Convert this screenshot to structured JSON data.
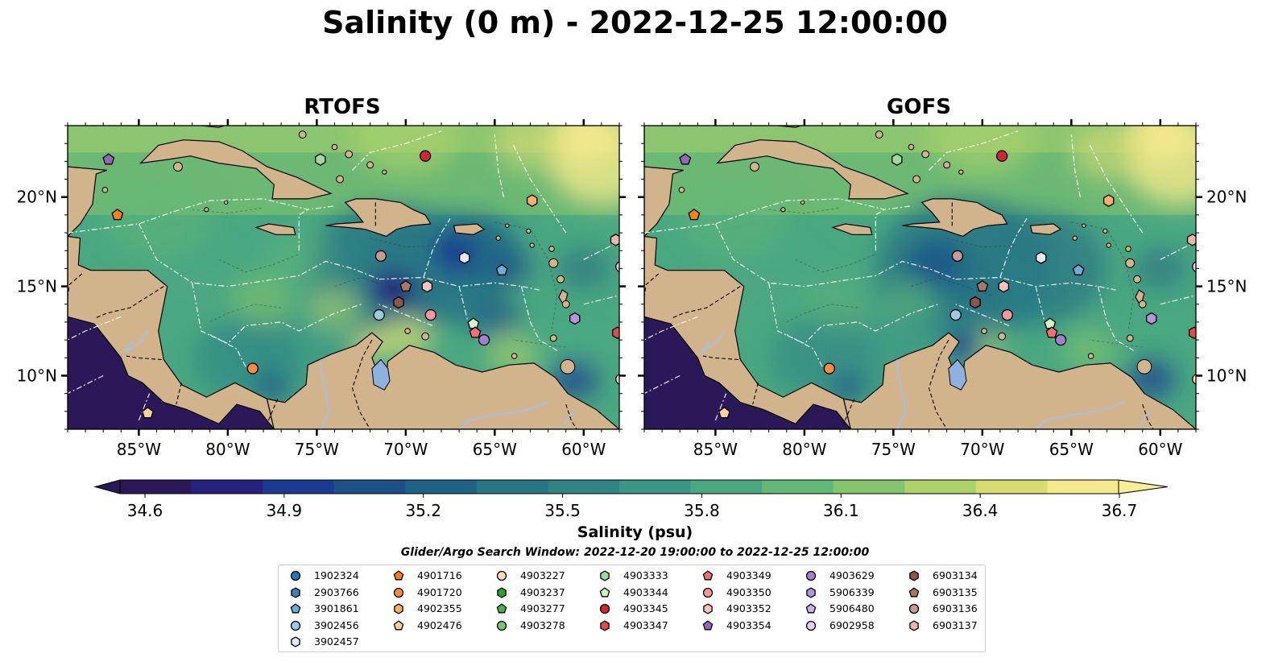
{
  "title": "Salinity (0 m) - 2022-12-25 12:00:00",
  "panels": [
    {
      "title": "RTOFS"
    },
    {
      "title": "GOFS"
    }
  ],
  "colorbar": {
    "label": "Salinity (psu)",
    "ticks": [
      "34.6",
      "34.9",
      "35.2",
      "35.5",
      "35.8",
      "36.1",
      "36.4",
      "36.7"
    ],
    "min": 34.6,
    "max": 36.7,
    "extend": "both",
    "colormap": [
      "#2a1858",
      "#26207e",
      "#1d3a92",
      "#1b5089",
      "#1e6286",
      "#277585",
      "#2f8585",
      "#3a9685",
      "#4aa881",
      "#62b877",
      "#84c56d",
      "#acd26a",
      "#d5dc74",
      "#f3e88b"
    ]
  },
  "search_window": "Glider/Argo Search Window: 2022-12-20 19:00:00 to 2022-12-25 12:00:00",
  "chart_data": {
    "type": "heatmap",
    "variable": "Salinity",
    "depth": "0 m",
    "units": "psu",
    "x_ticks": [
      "85°W",
      "80°W",
      "75°W",
      "70°W",
      "65°W",
      "60°W"
    ],
    "y_ticks": [
      "10°N",
      "15°N",
      "20°N"
    ],
    "xlim": [
      -89,
      -58
    ],
    "ylim": [
      7,
      24
    ],
    "colorbar_range": [
      34.6,
      36.7
    ],
    "land_color": "#d2b48c",
    "floats": [
      {
        "id": "1902324",
        "marker": "circle",
        "color": "#1f77b4",
        "positions": []
      },
      {
        "id": "2903766",
        "marker": "hexagon",
        "color": "#3d7fb6",
        "positions": []
      },
      {
        "id": "3901861",
        "marker": "pentagon",
        "color": "#6baed6",
        "positions": [
          [
            -64.6,
            15.9
          ]
        ]
      },
      {
        "id": "3902456",
        "marker": "circle",
        "color": "#9ecae1",
        "positions": [
          [
            -71.5,
            13.4
          ]
        ]
      },
      {
        "id": "3902457",
        "marker": "hexagon",
        "color": "#deebf7",
        "positions": [
          [
            -66.7,
            16.6
          ]
        ]
      },
      {
        "id": "4901716",
        "marker": "pentagon",
        "color": "#ff7f0e",
        "positions": [
          [
            -86.2,
            19.0
          ]
        ]
      },
      {
        "id": "4901720",
        "marker": "circle",
        "color": "#fd8d3c",
        "positions": [
          [
            -78.6,
            10.4
          ]
        ]
      },
      {
        "id": "4902355",
        "marker": "hexagon",
        "color": "#fdae6b",
        "positions": [
          [
            -62.9,
            19.8
          ]
        ]
      },
      {
        "id": "4902476",
        "marker": "pentagon",
        "color": "#fdd0a2",
        "positions": [
          [
            -84.5,
            7.9
          ]
        ]
      },
      {
        "id": "4903227",
        "marker": "circle",
        "color": "#fdd9bf",
        "positions": [
          [
            -57.9,
            9.8
          ]
        ]
      },
      {
        "id": "4903237",
        "marker": "hexagon",
        "color": "#2ca02c",
        "positions": []
      },
      {
        "id": "4903277",
        "marker": "pentagon",
        "color": "#4bb34b",
        "positions": []
      },
      {
        "id": "4903278",
        "marker": "circle",
        "color": "#74c476",
        "positions": []
      },
      {
        "id": "4903333",
        "marker": "hexagon",
        "color": "#a1d99b",
        "positions": [
          [
            -74.8,
            22.1
          ]
        ]
      },
      {
        "id": "4903344",
        "marker": "pentagon",
        "color": "#d1f2c8",
        "positions": [
          [
            -66.2,
            12.9
          ]
        ]
      },
      {
        "id": "4903345",
        "marker": "circle",
        "color": "#d62728",
        "positions": [
          [
            -68.9,
            22.3
          ]
        ]
      },
      {
        "id": "4903347",
        "marker": "hexagon",
        "color": "#e34a4a",
        "positions": [
          [
            -58.1,
            12.4
          ]
        ]
      },
      {
        "id": "4903349",
        "marker": "pentagon",
        "color": "#f07073",
        "positions": [
          [
            -66.1,
            12.4
          ]
        ]
      },
      {
        "id": "4903350",
        "marker": "circle",
        "color": "#f4999b",
        "positions": [
          [
            -68.6,
            13.4
          ]
        ]
      },
      {
        "id": "4903352",
        "marker": "hexagon",
        "color": "#f8c2c4",
        "positions": [
          [
            -68.8,
            15.0
          ]
        ]
      },
      {
        "id": "4903354",
        "marker": "pentagon",
        "color": "#9467bd",
        "positions": [
          [
            -86.7,
            22.1
          ]
        ]
      },
      {
        "id": "4903629",
        "marker": "circle",
        "color": "#a47fd0",
        "positions": [
          [
            -65.6,
            12.0
          ]
        ]
      },
      {
        "id": "5906339",
        "marker": "hexagon",
        "color": "#b296e0",
        "positions": [
          [
            -60.5,
            13.2
          ]
        ]
      },
      {
        "id": "5906480",
        "marker": "pentagon",
        "color": "#c9b2ee",
        "positions": []
      },
      {
        "id": "6902958",
        "marker": "circle",
        "color": "#e2cdf7",
        "positions": [
          [
            -57.9,
            16.1
          ]
        ]
      },
      {
        "id": "6903134",
        "marker": "hexagon",
        "color": "#8c564b",
        "positions": [
          [
            -70.4,
            14.1
          ]
        ]
      },
      {
        "id": "6903135",
        "marker": "pentagon",
        "color": "#a8776b",
        "positions": [
          [
            -70.0,
            15.0
          ]
        ]
      },
      {
        "id": "6903136",
        "marker": "circle",
        "color": "#c49c94",
        "positions": [
          [
            -71.4,
            16.7
          ]
        ]
      },
      {
        "id": "6903137",
        "marker": "hexagon",
        "color": "#e8b8a8",
        "positions": [
          [
            -58.2,
            17.6
          ]
        ]
      }
    ]
  }
}
